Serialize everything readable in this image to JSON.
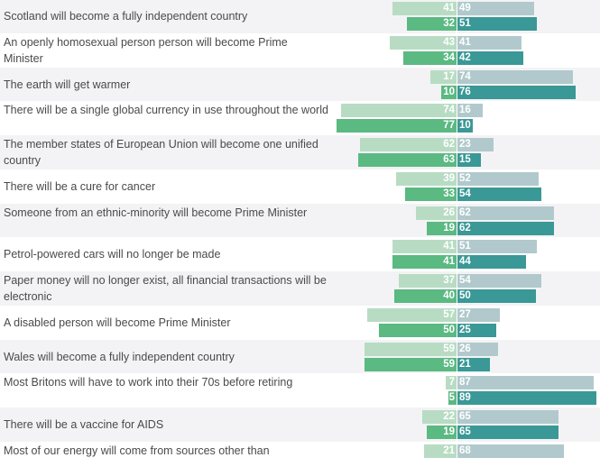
{
  "chart_data": {
    "type": "bar",
    "orientation": "horizontal-diverging",
    "colors": {
      "left_light": "#b8dcc3",
      "left_dark": "#5bb982",
      "right_light": "#b1c9cc",
      "right_dark": "#3a9896"
    },
    "categories": [
      "Scotland will become a fully independent country",
      "An openly homosexual person person will become Prime Minister",
      "The earth will get warmer",
      "There will be a single global currency in use throughout the world",
      "The member states of European Union will become one unified country",
      "There will be a cure for cancer",
      "Someone from an ethnic-minority will become Prime Minister",
      "Petrol-powered cars will no longer be made",
      "Paper money will no longer exist, all financial transactions will be electronic",
      "A disabled person will become Prime Minister",
      "Wales will become a fully independent country",
      "Most Britons will have to work into their 70s before retiring",
      "There will be a vaccine for AIDS",
      "Most of our energy will come from sources other than"
    ],
    "series": [
      {
        "side": "left",
        "shade": "light",
        "values": [
          41,
          43,
          17,
          74,
          62,
          39,
          26,
          41,
          37,
          57,
          59,
          7,
          22,
          21
        ]
      },
      {
        "side": "right",
        "shade": "light",
        "values": [
          49,
          41,
          74,
          16,
          23,
          52,
          62,
          51,
          54,
          27,
          26,
          87,
          65,
          68
        ]
      },
      {
        "side": "left",
        "shade": "dark",
        "values": [
          32,
          34,
          10,
          77,
          63,
          33,
          19,
          41,
          40,
          50,
          59,
          5,
          19,
          null
        ]
      },
      {
        "side": "right",
        "shade": "dark",
        "values": [
          51,
          42,
          76,
          10,
          15,
          54,
          62,
          44,
          50,
          25,
          21,
          89,
          65,
          null
        ]
      }
    ],
    "xlabel": "",
    "ylabel": "",
    "grid": false
  }
}
